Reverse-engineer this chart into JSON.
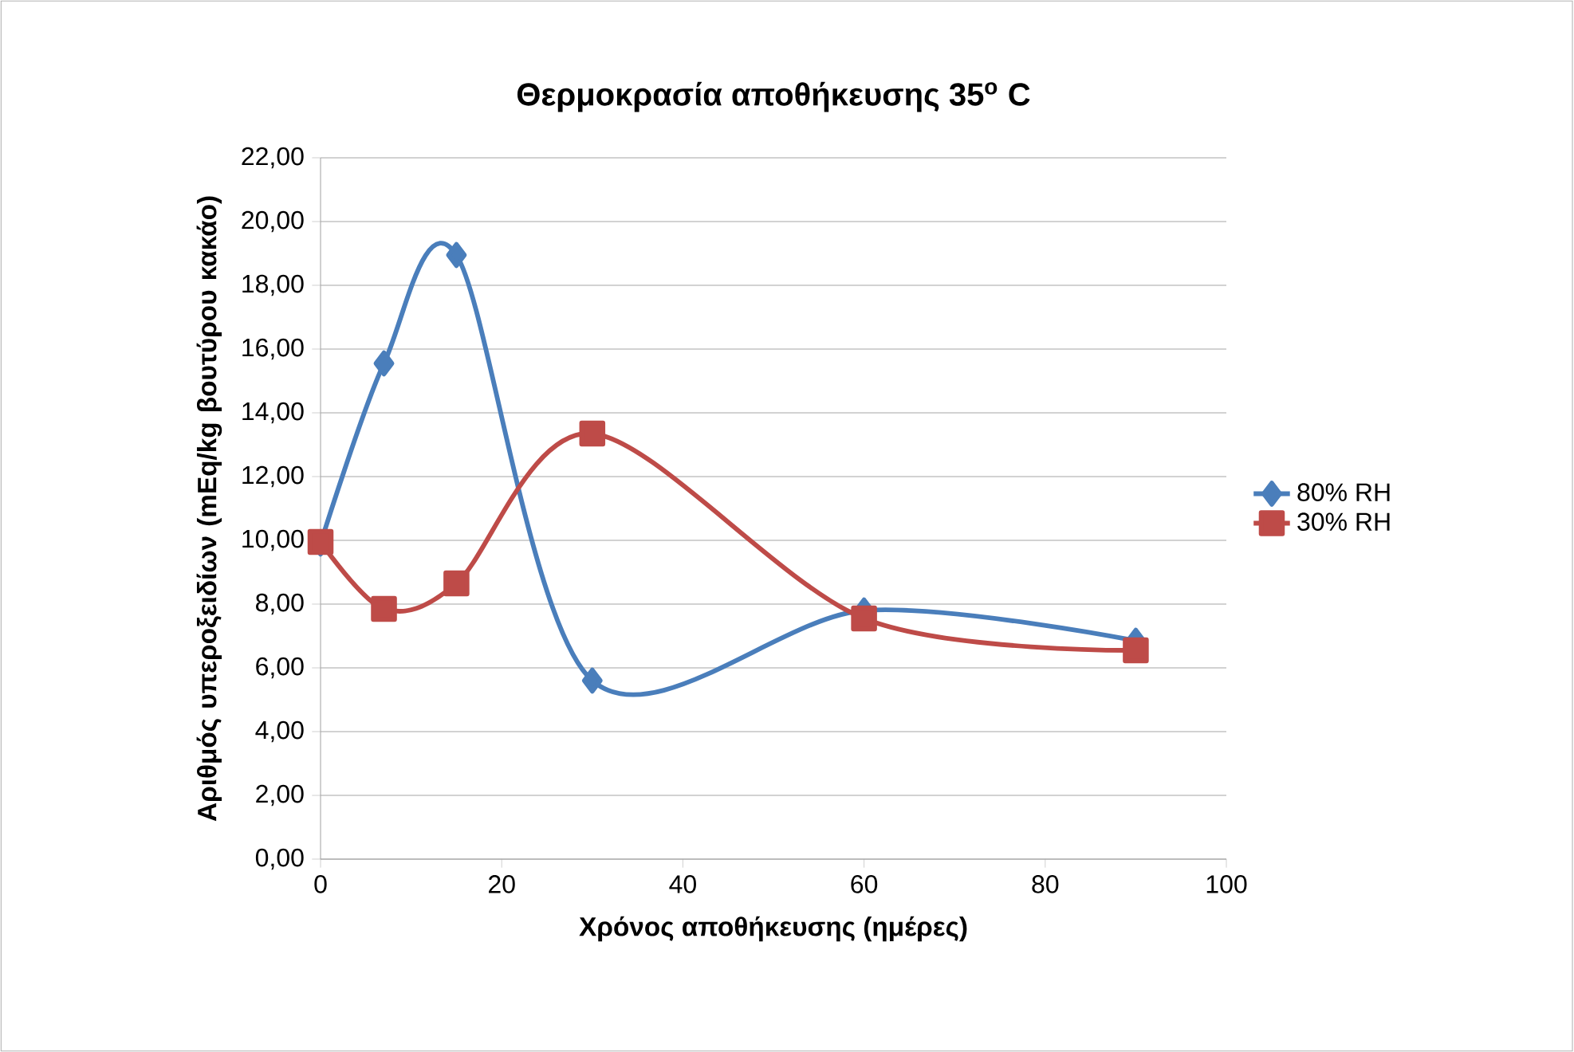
{
  "chart_data": {
    "type": "line",
    "title": "Θερμοκρασία αποθήκευσης 35$^{o}$ C",
    "xlabel": "Χρόνος αποθήκευσης (ημέρες)",
    "ylabel": "Αριθμός υπεροξειδίων (mEq/kg βουτύρου κακάο)",
    "x": [
      0,
      7,
      15,
      30,
      60,
      90
    ],
    "series": [
      {
        "name": "80% RH",
        "color": "#4a7ebb",
        "marker": "diamond",
        "values": [
          9.9,
          15.55,
          18.95,
          5.6,
          7.8,
          6.85
        ]
      },
      {
        "name": "30% RH",
        "color": "#be4b48",
        "marker": "square",
        "values": [
          9.95,
          7.85,
          8.65,
          13.35,
          7.55,
          6.55
        ]
      }
    ],
    "xlim": [
      0,
      100
    ],
    "xticks": [
      0,
      20,
      40,
      60,
      80,
      100
    ],
    "ylim": [
      0,
      22
    ],
    "yticks": [
      {
        "value": 0,
        "label": "0,00"
      },
      {
        "value": 2,
        "label": "2,00"
      },
      {
        "value": 4,
        "label": "4,00"
      },
      {
        "value": 6,
        "label": "6,00"
      },
      {
        "value": 8,
        "label": "8,00"
      },
      {
        "value": 10,
        "label": "10,00"
      },
      {
        "value": 12,
        "label": "12,00"
      },
      {
        "value": 14,
        "label": "14,00"
      },
      {
        "value": 16,
        "label": "16,00"
      },
      {
        "value": 18,
        "label": "18,00"
      },
      {
        "value": 20,
        "label": "20,00"
      },
      {
        "value": 22,
        "label": "22,00"
      }
    ],
    "grid": "y",
    "legend": "right",
    "line_style": "solid"
  }
}
